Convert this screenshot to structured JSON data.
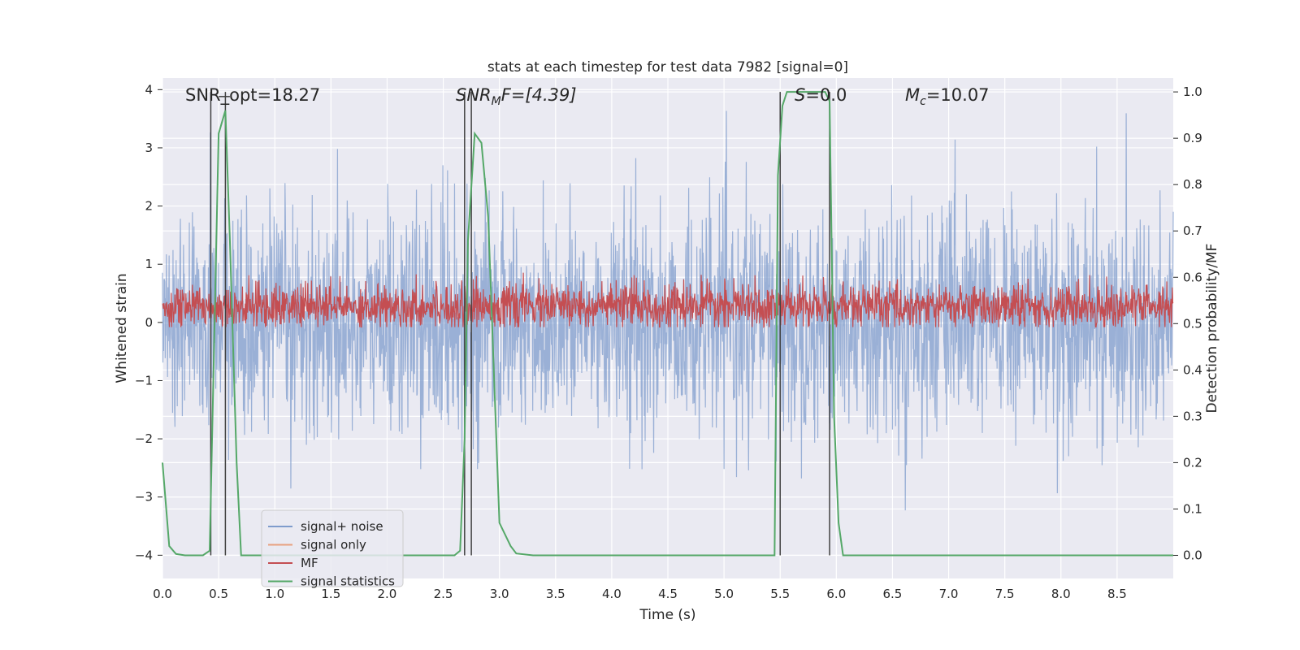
{
  "chart_data": {
    "type": "line",
    "title": "stats at each timestep for test data 7982 [signal=0]",
    "xlabel": "Time (s)",
    "ylabel_left": "Whitened strain",
    "ylabel_right": "Detection probability/MF",
    "xlim": [
      0.0,
      9.0
    ],
    "ylim_left": [
      -4.4,
      4.2
    ],
    "ylim_right": [
      -0.05,
      1.03
    ],
    "x_ticks": [
      "0.0",
      "0.5",
      "1.0",
      "1.5",
      "2.0",
      "2.5",
      "3.0",
      "3.5",
      "4.0",
      "4.5",
      "5.0",
      "5.5",
      "6.0",
      "6.5",
      "7.0",
      "7.5",
      "8.0",
      "8.5"
    ],
    "y_left_ticks": [
      "4",
      "3",
      "2",
      "1",
      "0",
      "−1",
      "−2",
      "−3",
      "−4"
    ],
    "y_right_ticks": [
      "1.0",
      "0.9",
      "0.8",
      "0.7",
      "0.6",
      "0.5",
      "0.4",
      "0.3",
      "0.2",
      "0.1",
      "0.0"
    ],
    "grid": true,
    "annotations": {
      "snr_opt": "SNR_opt=18.27",
      "snr_mf_main": "SNR",
      "snr_mf_sub": "M",
      "snr_mf_rest": "F=[4.39]",
      "s_italic": "S",
      "s_rest": "=0.0",
      "mc_main": "M",
      "mc_sub": "c",
      "mc_rest": "=10.07"
    },
    "vertical_lines_x": [
      0.43,
      0.56,
      2.69,
      2.75,
      5.5,
      5.94
    ],
    "series": [
      {
        "name": "signal+ noise",
        "color": "#7f9ccc",
        "description_stats": {
          "mean": 0.0,
          "typical_range": [
            -2.0,
            2.3
          ],
          "max": 3.8,
          "min": -4.0
        }
      },
      {
        "name": "signal only",
        "color": "#e8a07f",
        "values": []
      },
      {
        "name": "MF",
        "color": "#c44e52",
        "description_stats": {
          "mean": 0.25,
          "typical_range": [
            0.0,
            0.7
          ],
          "max": 1.0
        }
      },
      {
        "name": "signal statistics",
        "color": "#55a868",
        "x": [
          0.0,
          0.06,
          0.12,
          0.2,
          0.3,
          0.36,
          0.42,
          0.5,
          0.56,
          0.6,
          0.66,
          0.7,
          0.8,
          1.0,
          2.5,
          2.6,
          2.65,
          2.69,
          2.72,
          2.78,
          2.84,
          2.9,
          3.0,
          3.1,
          3.15,
          3.3,
          4.0,
          5.0,
          5.45,
          5.48,
          5.52,
          5.56,
          5.7,
          5.9,
          5.94,
          5.98,
          6.02,
          6.06,
          6.5,
          9.0
        ],
        "y": [
          0.2,
          0.02,
          0.003,
          0.0,
          0.0,
          0.0,
          0.01,
          0.91,
          0.96,
          0.68,
          0.2,
          0.0,
          0.0,
          0.0,
          0.0,
          0.0,
          0.01,
          0.25,
          0.68,
          0.91,
          0.89,
          0.73,
          0.07,
          0.02,
          0.004,
          0.0,
          0.0,
          0.0,
          0.0,
          0.82,
          0.97,
          1.0,
          1.0,
          1.0,
          0.98,
          0.3,
          0.07,
          0.0,
          0.0,
          0.0
        ]
      }
    ],
    "legend": {
      "placement": "lower-left",
      "entries": [
        "signal+ noise",
        "signal only",
        "MF",
        "signal statistics"
      ]
    },
    "colors": {
      "background": "#eaeaf2",
      "grid": "#ffffff",
      "vline": "#404040"
    }
  }
}
